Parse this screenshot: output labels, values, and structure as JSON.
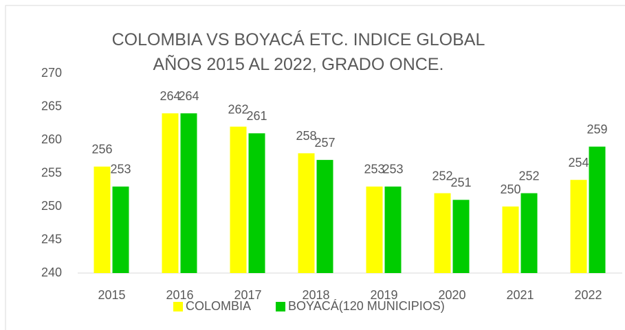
{
  "chart_data": {
    "type": "bar",
    "title": "COLOMBIA VS BOYACÁ ETC. INDICE GLOBAL AÑOS 2015 AL 2022, GRADO ONCE.",
    "categories": [
      "2015",
      "2016",
      "2017",
      "2018",
      "2019",
      "2020",
      "2021",
      "2022"
    ],
    "series": [
      {
        "name": "COLOMBIA",
        "color": "#ffff00",
        "values": [
          256,
          264,
          262,
          258,
          253,
          252,
          250,
          254
        ]
      },
      {
        "name": "BOYACÁ(120 MUNICIPIOS)",
        "color": "#00cc00",
        "values": [
          253,
          264,
          261,
          257,
          253,
          251,
          252,
          259
        ]
      }
    ],
    "ylim": [
      240,
      270
    ],
    "yticks": [
      240,
      245,
      250,
      255,
      260,
      265,
      270
    ],
    "grid": false,
    "legend": "bottom"
  }
}
